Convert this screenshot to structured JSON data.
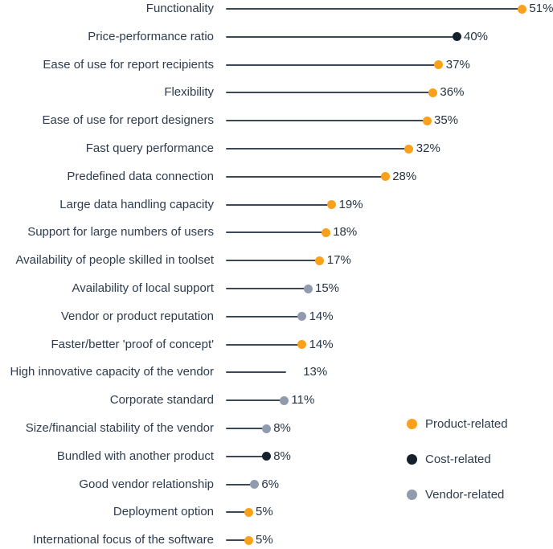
{
  "chart_data": {
    "type": "lollipop",
    "orientation": "horizontal",
    "unit": "%",
    "xlim": [
      0,
      56
    ],
    "grid": false,
    "stem_color": "#3c4856",
    "label_color": "#2e3c4e",
    "value_color": "#273442",
    "legend_position": "bottom-right",
    "legend": [
      {
        "key": "product",
        "label": "Product-related",
        "color": "#f9a11b"
      },
      {
        "key": "cost",
        "label": "Cost-related",
        "color": "#15202d"
      },
      {
        "key": "vendor",
        "label": "Vendor-related",
        "color": "#909cad"
      }
    ],
    "items": [
      {
        "label": "Functionality",
        "value": 51,
        "value_label": "51%",
        "category": "product"
      },
      {
        "label": "Price-performance ratio",
        "value": 40,
        "value_label": "40%",
        "category": "cost"
      },
      {
        "label": "Ease of use for report recipients",
        "value": 37,
        "value_label": "37%",
        "category": "product"
      },
      {
        "label": "Flexibility",
        "value": 36,
        "value_label": "36%",
        "category": "product"
      },
      {
        "label": "Ease of use for report designers",
        "value": 35,
        "value_label": "35%",
        "category": "product"
      },
      {
        "label": "Fast query performance",
        "value": 32,
        "value_label": "32%",
        "category": "product"
      },
      {
        "label": "Predefined data connection",
        "value": 28,
        "value_label": "28%",
        "category": "product"
      },
      {
        "label": "Large data handling capacity",
        "value": 19,
        "value_label": "19%",
        "category": "product"
      },
      {
        "label": "Support for large numbers of users",
        "value": 18,
        "value_label": "18%",
        "category": "product"
      },
      {
        "label": "Availability of people skilled in toolset",
        "value": 17,
        "value_label": "17%",
        "category": "product"
      },
      {
        "label": "Availability of local support",
        "value": 15,
        "value_label": "15%",
        "category": "vendor"
      },
      {
        "label": "Vendor or product reputation",
        "value": 14,
        "value_label": "14%",
        "category": "vendor"
      },
      {
        "label": "Faster/better 'proof of concept'",
        "value": 14,
        "value_label": "14%",
        "category": "product"
      },
      {
        "label": "High innovative capacity of the vendor",
        "value": 13,
        "value_label": "13%",
        "category": "none"
      },
      {
        "label": "Corporate standard",
        "value": 11,
        "value_label": "11%",
        "category": "vendor"
      },
      {
        "label": "Size/financial stability of the vendor",
        "value": 8,
        "value_label": "8%",
        "category": "vendor"
      },
      {
        "label": "Bundled with another product",
        "value": 8,
        "value_label": "8%",
        "category": "cost"
      },
      {
        "label": "Good vendor relationship",
        "value": 6,
        "value_label": "6%",
        "category": "vendor"
      },
      {
        "label": "Deployment option",
        "value": 5,
        "value_label": "5%",
        "category": "product"
      },
      {
        "label": "International focus of the software",
        "value": 5,
        "value_label": "5%",
        "category": "product"
      }
    ]
  }
}
